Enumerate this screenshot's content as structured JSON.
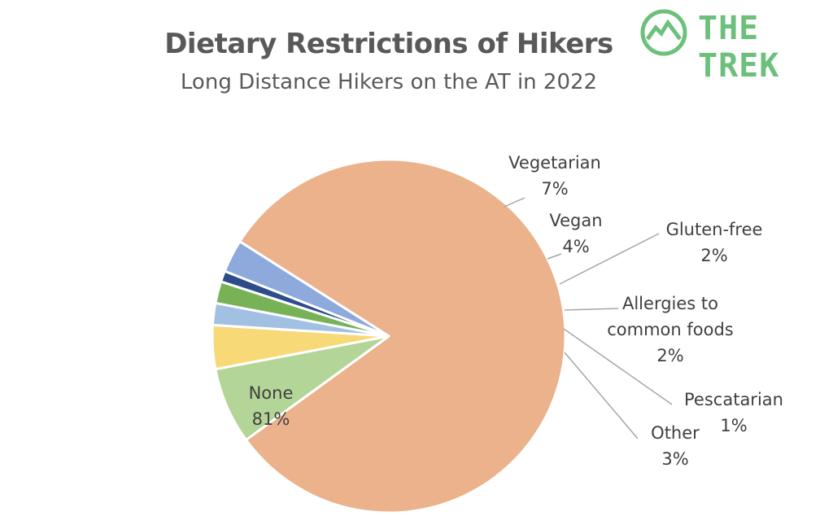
{
  "logo": {
    "text": "THE TREK",
    "color": "#6cc07b",
    "icon": "mountain-circle-icon"
  },
  "chart_data": {
    "type": "pie",
    "title": "Dietary Restrictions of Hikers",
    "subtitle": "Long Distance Hikers on the AT in 2022",
    "slices": [
      {
        "label": "None",
        "value": 81,
        "display": "81%",
        "color": "#ebb28b"
      },
      {
        "label": "Vegetarian",
        "value": 7,
        "display": "7%",
        "color": "#b3d597"
      },
      {
        "label": "Vegan",
        "value": 4,
        "display": "4%",
        "color": "#f8d977"
      },
      {
        "label": "Gluten-free",
        "value": 2,
        "display": "2%",
        "color": "#a2c0e2"
      },
      {
        "label": "Allergies to common foods",
        "label_lines": [
          "Allergies to",
          "common foods"
        ],
        "value": 2,
        "display": "2%",
        "color": "#77b356"
      },
      {
        "label": "Pescatarian",
        "value": 1,
        "display": "1%",
        "color": "#2c4c8a"
      },
      {
        "label": "Other",
        "value": 3,
        "display": "3%",
        "color": "#8ea9db"
      }
    ]
  }
}
